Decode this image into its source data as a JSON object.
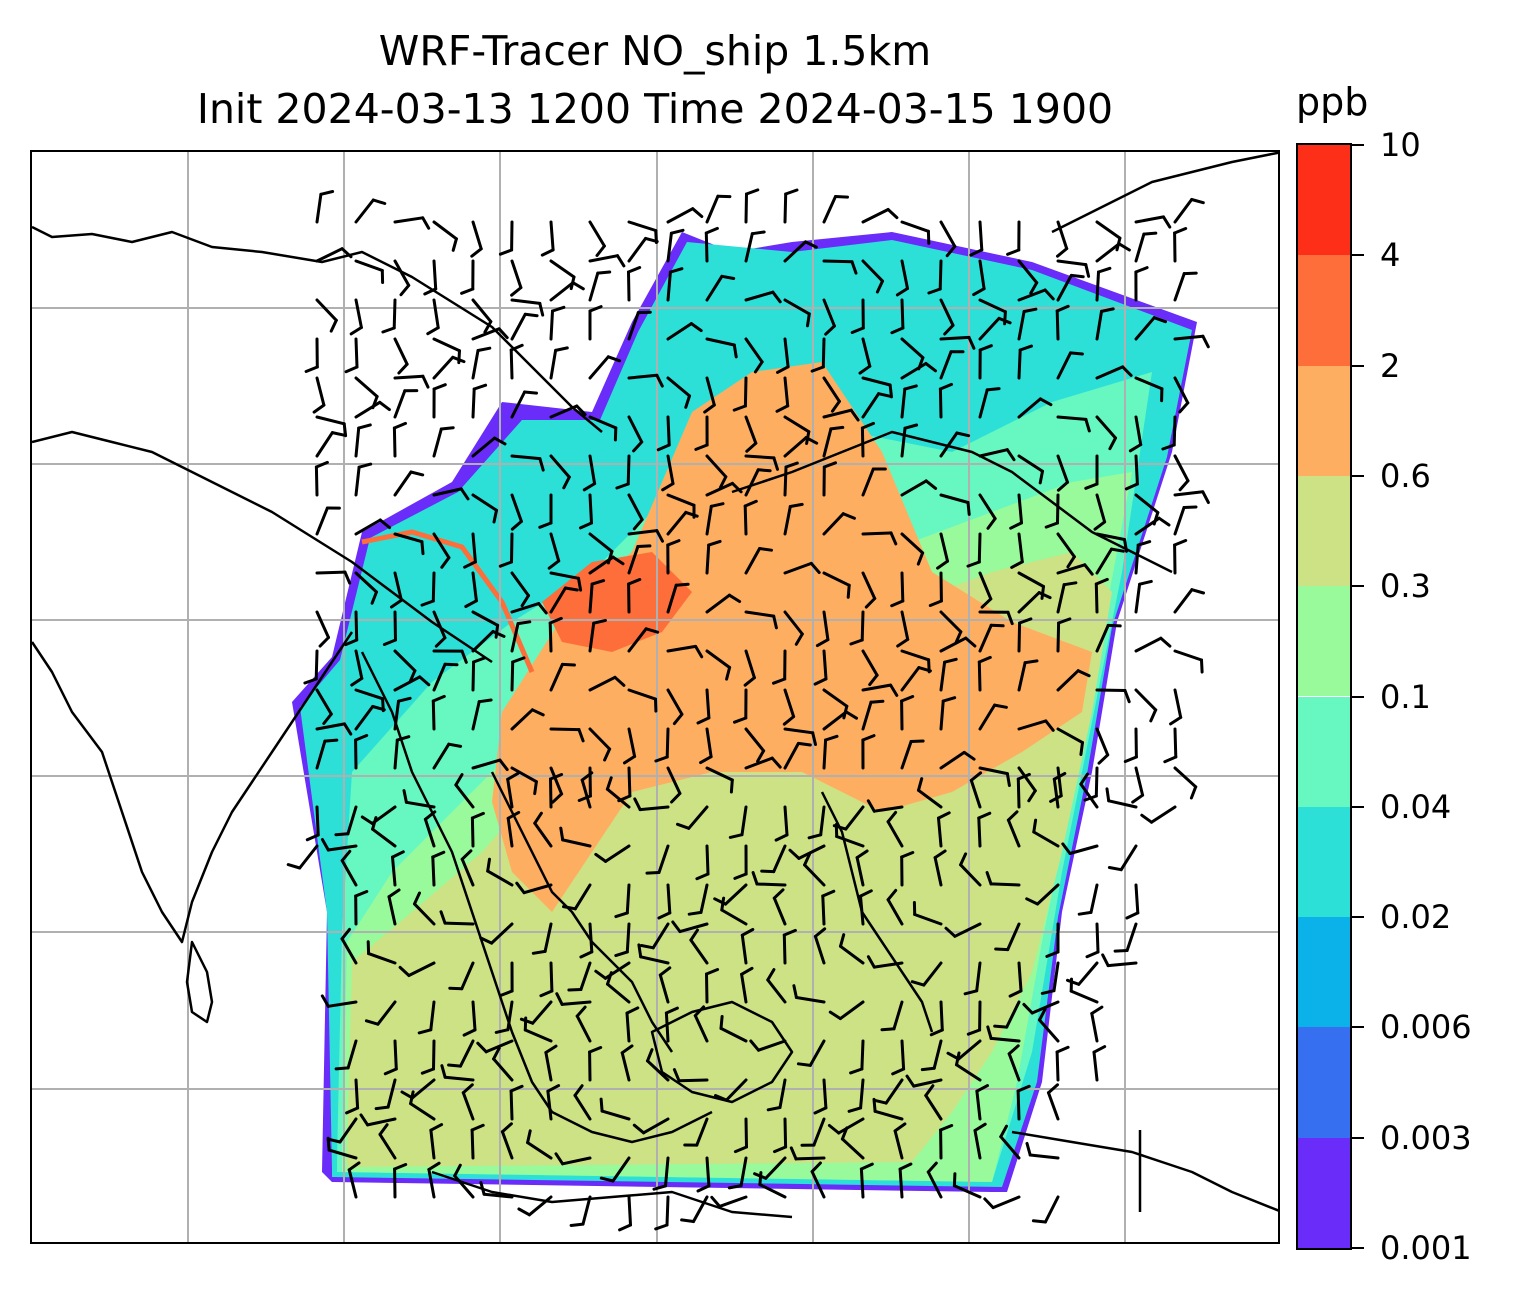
{
  "title": {
    "line1": "WRF-Tracer NO_ship 1.5km",
    "line2": "Init 2024-03-13 1200 Time 2024-03-15 1900"
  },
  "colorbar": {
    "unit": "ppb",
    "levels": [
      "0.001",
      "0.003",
      "0.006",
      "0.02",
      "0.04",
      "0.1",
      "0.3",
      "0.6",
      "2",
      "4",
      "10"
    ],
    "colors": [
      "#6a2cf8",
      "#3670f0",
      "#0bb2ea",
      "#2ce0d8",
      "#66f8c0",
      "#98fa9a",
      "#cde285",
      "#feae60",
      "#fe6e3a",
      "#fe2f18"
    ]
  },
  "map": {
    "background_color": "#ffffff",
    "coastline_color": "#000000",
    "gridline_color": "#b0b0b0",
    "wind_barb_color": "#000000"
  }
}
